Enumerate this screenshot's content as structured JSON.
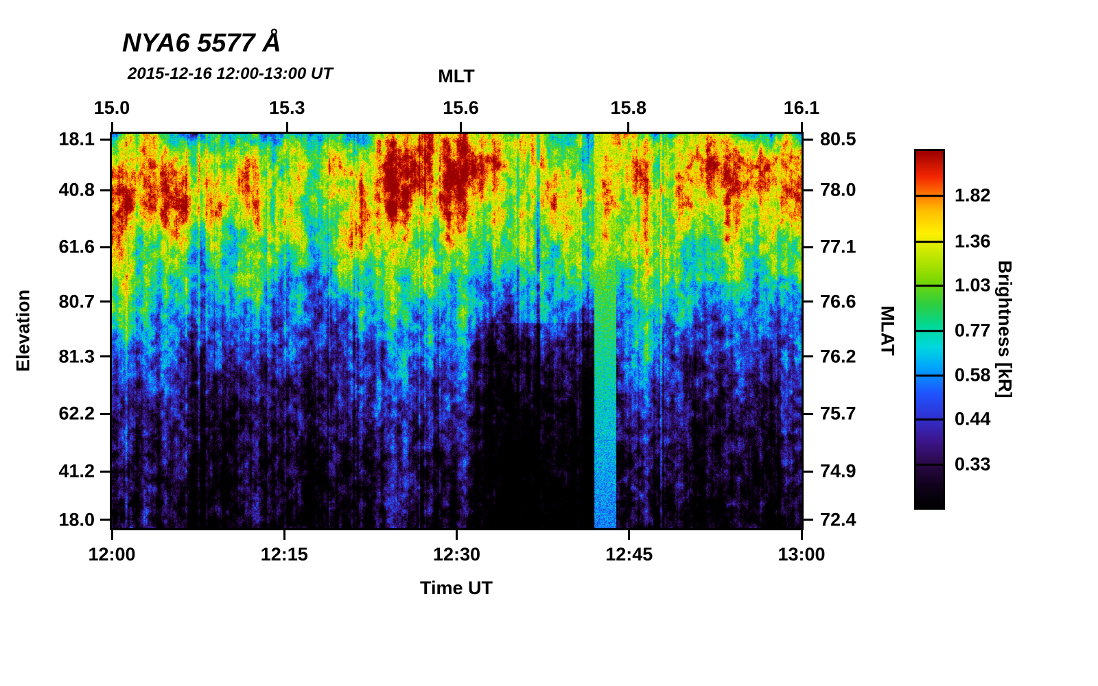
{
  "title": "NYA6 5577 Å",
  "subtitle": "2015-12-16 12:00-13:00 UT",
  "axes": {
    "top": {
      "label": "MLT",
      "ticks": [
        {
          "label": "15.0",
          "pos": 0.0
        },
        {
          "label": "15.3",
          "pos": 0.254
        },
        {
          "label": "15.6",
          "pos": 0.506
        },
        {
          "label": "15.8",
          "pos": 0.749
        },
        {
          "label": "16.1",
          "pos": 1.0
        }
      ]
    },
    "bottom": {
      "label": "Time UT",
      "ticks": [
        {
          "label": "12:00",
          "pos": 0.0
        },
        {
          "label": "12:15",
          "pos": 0.25
        },
        {
          "label": "12:30",
          "pos": 0.5
        },
        {
          "label": "12:45",
          "pos": 0.75
        },
        {
          "label": "13:00",
          "pos": 1.0
        }
      ]
    },
    "left": {
      "label": "Elevation",
      "ticks": [
        {
          "label": "18.1",
          "pos": 0.014
        },
        {
          "label": "40.8",
          "pos": 0.143
        },
        {
          "label": "61.6",
          "pos": 0.287
        },
        {
          "label": "80.7",
          "pos": 0.426
        },
        {
          "label": "81.3",
          "pos": 0.565
        },
        {
          "label": "62.2",
          "pos": 0.71
        },
        {
          "label": "41.2",
          "pos": 0.856
        },
        {
          "label": "18.0",
          "pos": 0.979
        }
      ]
    },
    "right": {
      "label": "MLAT",
      "ticks": [
        {
          "label": "80.5",
          "pos": 0.014
        },
        {
          "label": "78.0",
          "pos": 0.143
        },
        {
          "label": "77.1",
          "pos": 0.287
        },
        {
          "label": "76.6",
          "pos": 0.426
        },
        {
          "label": "76.2",
          "pos": 0.565
        },
        {
          "label": "75.7",
          "pos": 0.71
        },
        {
          "label": "74.9",
          "pos": 0.856
        },
        {
          "label": "72.4",
          "pos": 0.979
        }
      ]
    }
  },
  "colorbar": {
    "label": "Brightness [kR]",
    "scale": "log",
    "value_range_kr": [
      0.25,
      2.42
    ],
    "ticks": [
      {
        "label": "1.82",
        "pos": 0.125
      },
      {
        "label": "1.36",
        "pos": 0.253
      },
      {
        "label": "1.03",
        "pos": 0.376
      },
      {
        "label": "0.77",
        "pos": 0.504
      },
      {
        "label": "0.58",
        "pos": 0.629
      },
      {
        "label": "0.44",
        "pos": 0.751
      },
      {
        "label": "0.33",
        "pos": 0.878
      }
    ],
    "colormap": [
      [
        0.0,
        "#000000"
      ],
      [
        0.06,
        "#10021c"
      ],
      [
        0.12,
        "#2a0845"
      ],
      [
        0.19,
        "#3d1690"
      ],
      [
        0.25,
        "#3030d0"
      ],
      [
        0.32,
        "#1f55ff"
      ],
      [
        0.39,
        "#00a2ff"
      ],
      [
        0.45,
        "#00d8de"
      ],
      [
        0.51,
        "#00d896"
      ],
      [
        0.57,
        "#2fce3f"
      ],
      [
        0.64,
        "#7ed800"
      ],
      [
        0.71,
        "#c6e800"
      ],
      [
        0.77,
        "#fff000"
      ],
      [
        0.83,
        "#ffc000"
      ],
      [
        0.88,
        "#ff7500"
      ],
      [
        0.93,
        "#f22500"
      ],
      [
        1.0,
        "#9b0000"
      ]
    ]
  },
  "chart_data": {
    "type": "heatmap",
    "title": "NYA6 5577 Å",
    "subtitle": "2015-12-16 12:00-13:00 UT",
    "xlabel": "Time UT",
    "x_range_ut": [
      "12:00",
      "13:00"
    ],
    "top_axis": "MLT 15.0 - 16.1",
    "left_axis": "Elevation 18.1 - 80.7 - 81.3 - 18.0 (scan through zenith)",
    "right_axis": "MLAT 80.5 - 72.4",
    "value_units": "kR",
    "colormap_scale": "log",
    "value_range_kr": [
      0.25,
      2.42
    ],
    "grid_shape": {
      "rows": 16,
      "cols": 24,
      "cols_span_minutes": [
        0,
        60
      ],
      "rows_span": "top edge to bottom edge of plot"
    },
    "values_kr": [
      [
        0.85,
        1.0,
        0.9,
        0.8,
        0.95,
        0.7,
        0.6,
        0.9,
        0.75,
        0.95,
        1.1,
        1.4,
        1.6,
        1.3,
        0.9,
        0.8,
        0.85,
        1.2,
        0.95,
        1.0,
        1.1,
        1.2,
        1.0,
        0.9
      ],
      [
        1.6,
        1.4,
        1.7,
        1.5,
        1.2,
        1.45,
        1.0,
        1.3,
        1.1,
        1.35,
        1.45,
        1.8,
        1.95,
        1.6,
        1.2,
        1.3,
        1.1,
        1.3,
        1.5,
        1.7,
        1.8,
        1.9,
        1.7,
        1.3
      ],
      [
        1.9,
        1.6,
        1.95,
        1.8,
        1.3,
        1.6,
        1.15,
        1.5,
        1.3,
        1.75,
        1.95,
        1.9,
        1.7,
        1.4,
        1.35,
        1.55,
        1.25,
        1.2,
        1.6,
        1.8,
        1.9,
        1.95,
        1.8,
        1.4
      ],
      [
        1.95,
        1.4,
        1.6,
        1.9,
        1.1,
        1.35,
        1.0,
        1.2,
        1.6,
        1.9,
        1.6,
        1.4,
        1.3,
        1.2,
        1.25,
        1.3,
        1.05,
        1.1,
        1.4,
        1.5,
        1.55,
        1.6,
        1.45,
        1.2
      ],
      [
        1.7,
        1.1,
        1.2,
        1.3,
        0.95,
        1.15,
        0.9,
        1.0,
        1.4,
        1.5,
        1.2,
        1.1,
        1.0,
        0.95,
        1.0,
        1.05,
        0.9,
        1.05,
        1.55,
        1.2,
        1.1,
        1.2,
        1.1,
        1.0
      ],
      [
        1.3,
        0.9,
        0.95,
        1.0,
        0.8,
        0.9,
        0.75,
        0.85,
        1.05,
        1.1,
        0.9,
        0.85,
        0.8,
        0.75,
        0.8,
        0.85,
        0.75,
        0.95,
        1.3,
        0.95,
        0.85,
        0.9,
        0.85,
        0.8
      ],
      [
        0.95,
        0.72,
        0.75,
        0.78,
        0.65,
        0.7,
        0.6,
        0.66,
        0.8,
        0.82,
        0.7,
        0.66,
        0.62,
        0.58,
        0.62,
        0.66,
        0.6,
        0.72,
        1.0,
        0.75,
        0.66,
        0.7,
        0.66,
        0.62
      ],
      [
        0.72,
        0.58,
        0.6,
        0.62,
        0.53,
        0.56,
        0.49,
        0.53,
        0.62,
        0.64,
        0.56,
        0.52,
        0.5,
        0.47,
        0.5,
        0.53,
        0.49,
        0.58,
        0.8,
        0.6,
        0.53,
        0.56,
        0.53,
        0.5
      ],
      [
        0.58,
        0.48,
        0.5,
        0.51,
        0.45,
        0.47,
        0.42,
        0.45,
        0.51,
        0.52,
        0.47,
        0.44,
        0.42,
        0.4,
        0.42,
        0.44,
        0.42,
        0.48,
        0.62,
        0.5,
        0.45,
        0.47,
        0.45,
        0.43
      ],
      [
        0.48,
        0.41,
        0.42,
        0.43,
        0.39,
        0.4,
        0.37,
        0.39,
        0.43,
        0.44,
        0.4,
        0.38,
        0.37,
        0.35,
        0.36,
        0.38,
        0.36,
        0.42,
        0.5,
        0.42,
        0.39,
        0.4,
        0.39,
        0.37
      ],
      [
        0.41,
        0.36,
        0.37,
        0.37,
        0.35,
        0.35,
        0.33,
        0.35,
        0.37,
        0.38,
        0.35,
        0.34,
        0.33,
        0.3,
        0.31,
        0.33,
        0.32,
        0.37,
        0.43,
        0.37,
        0.35,
        0.36,
        0.35,
        0.34
      ],
      [
        0.36,
        0.33,
        0.33,
        0.33,
        0.32,
        0.32,
        0.3,
        0.32,
        0.33,
        0.34,
        0.32,
        0.31,
        0.3,
        0.26,
        0.27,
        0.28,
        0.28,
        0.33,
        0.38,
        0.34,
        0.32,
        0.33,
        0.32,
        0.31
      ],
      [
        0.33,
        0.3,
        0.31,
        0.31,
        0.3,
        0.3,
        0.28,
        0.29,
        0.31,
        0.31,
        0.3,
        0.28,
        0.28,
        0.24,
        0.24,
        0.25,
        0.26,
        0.3,
        0.35,
        0.31,
        0.3,
        0.3,
        0.3,
        0.29
      ],
      [
        0.31,
        0.29,
        0.29,
        0.29,
        0.28,
        0.28,
        0.27,
        0.28,
        0.29,
        0.29,
        0.28,
        0.27,
        0.26,
        0.23,
        0.23,
        0.24,
        0.25,
        0.29,
        0.33,
        0.3,
        0.28,
        0.29,
        0.28,
        0.28
      ],
      [
        0.29,
        0.28,
        0.28,
        0.28,
        0.27,
        0.27,
        0.26,
        0.27,
        0.28,
        0.28,
        0.27,
        0.26,
        0.25,
        0.22,
        0.22,
        0.23,
        0.24,
        0.28,
        0.31,
        0.29,
        0.27,
        0.28,
        0.27,
        0.27
      ],
      [
        0.28,
        0.27,
        0.27,
        0.27,
        0.26,
        0.26,
        0.25,
        0.26,
        0.27,
        0.27,
        0.26,
        0.25,
        0.25,
        0.22,
        0.22,
        0.23,
        0.23,
        0.27,
        0.3,
        0.28,
        0.27,
        0.27,
        0.26,
        0.26
      ]
    ],
    "features": {
      "bright_column_minutes": [
        42.0,
        43.9
      ],
      "dark_region_minutes": [
        33.0,
        42.0
      ],
      "description": "Bright patchy aurora (red/yellow, 1.2-2 kR) in upper third; cyan/blue transition mid-plot; dark purple/black background (<0.35 kR) in lower half; narrow bright calibration-like column near 12:43 UT."
    }
  }
}
